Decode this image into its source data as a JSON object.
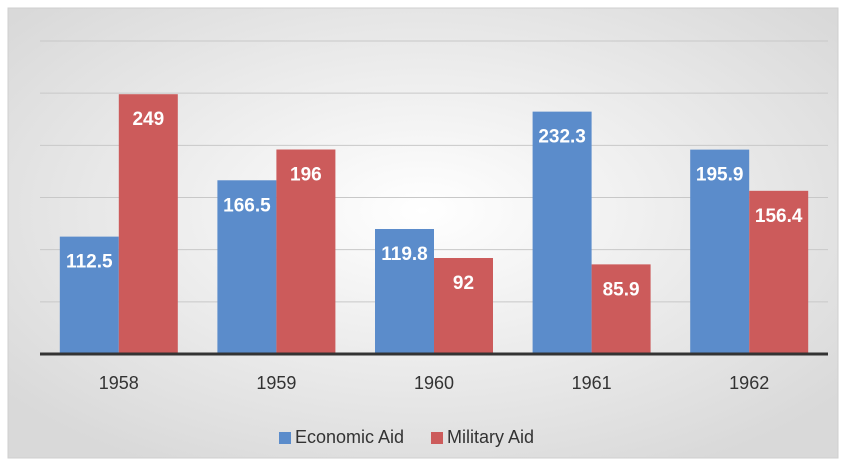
{
  "chart_data": {
    "type": "bar",
    "categories": [
      "1958",
      "1959",
      "1960",
      "1961",
      "1962"
    ],
    "series": [
      {
        "name": "Economic Aid",
        "color": "#5b8ccb",
        "values": [
          112.5,
          166.5,
          119.8,
          232.3,
          195.9
        ]
      },
      {
        "name": "Military Aid",
        "color": "#cc5b5b",
        "values": [
          249,
          196,
          92,
          85.9,
          156.4
        ]
      }
    ],
    "ylim": [
      0,
      300
    ],
    "yticks": [
      0,
      50,
      100,
      150,
      200,
      250,
      300
    ],
    "grid": true,
    "show_y_tick_labels": false,
    "legend": "bottom"
  }
}
